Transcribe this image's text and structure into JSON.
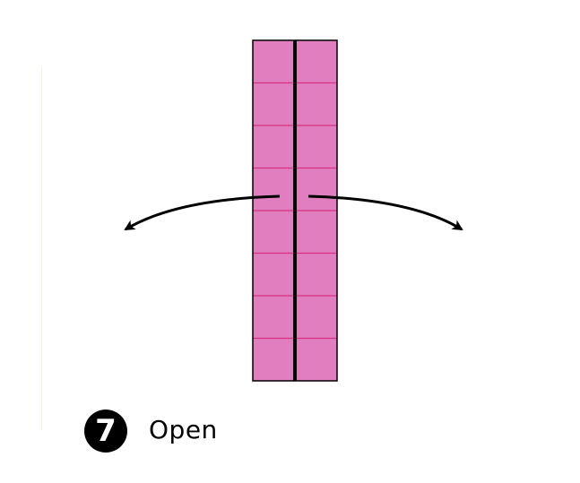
{
  "step": {
    "number": "7",
    "label": "Open"
  },
  "paper": {
    "fill_color": "#e07ec0",
    "crease_color": "#d6327f",
    "outline_color": "#000000",
    "center_fold_color": "#000000",
    "columns": 2,
    "rows": 8
  },
  "arrows": {
    "left": "arrow-left-icon",
    "right": "arrow-right-icon",
    "color": "#000000"
  }
}
